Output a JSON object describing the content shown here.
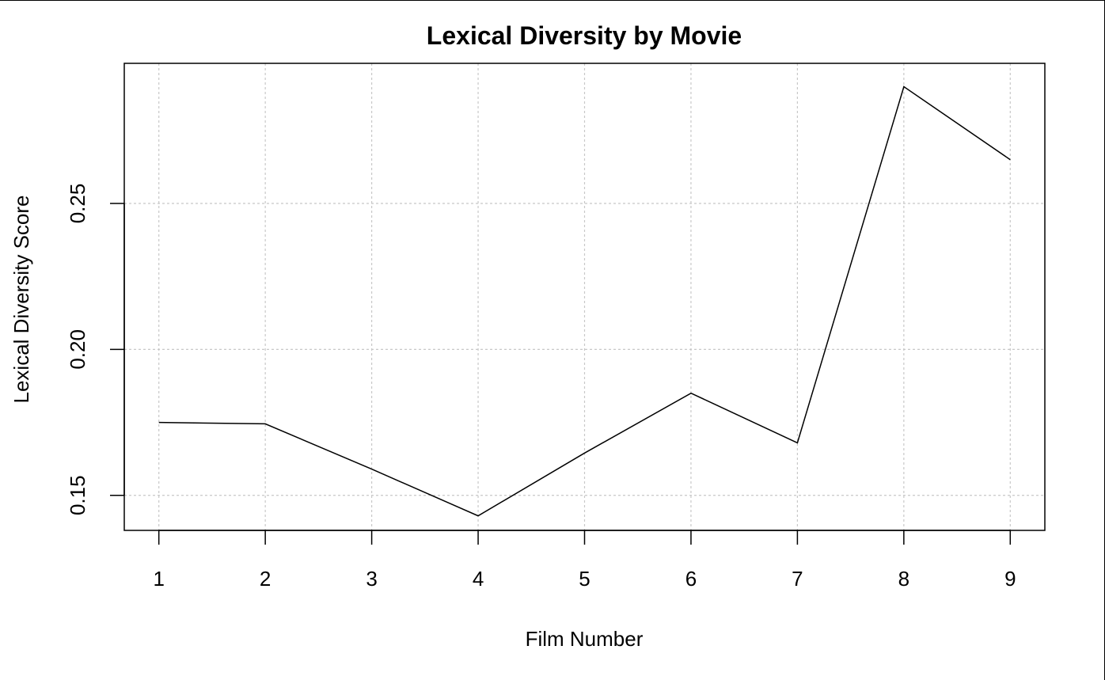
{
  "chart_data": {
    "type": "line",
    "title": "Lexical Diversity by Movie",
    "xlabel": "Film Number",
    "ylabel": "Lexical Diversity Score",
    "x": [
      1,
      2,
      3,
      4,
      5,
      6,
      7,
      8,
      9
    ],
    "x_ticks": [
      "1",
      "2",
      "3",
      "4",
      "5",
      "6",
      "7",
      "8",
      "9"
    ],
    "y": [
      0.175,
      0.1745,
      0.159,
      0.143,
      0.1645,
      0.185,
      0.168,
      0.29,
      0.265
    ],
    "y_ticks": [
      0.15,
      0.2,
      0.25
    ],
    "y_tick_labels": [
      "0.15",
      "0.20",
      "0.25"
    ],
    "xlim": [
      0.675,
      9.325
    ],
    "ylim": [
      0.138,
      0.298
    ],
    "grid": true,
    "line_color": "#000000",
    "grid_color": "#c8c8c8"
  }
}
